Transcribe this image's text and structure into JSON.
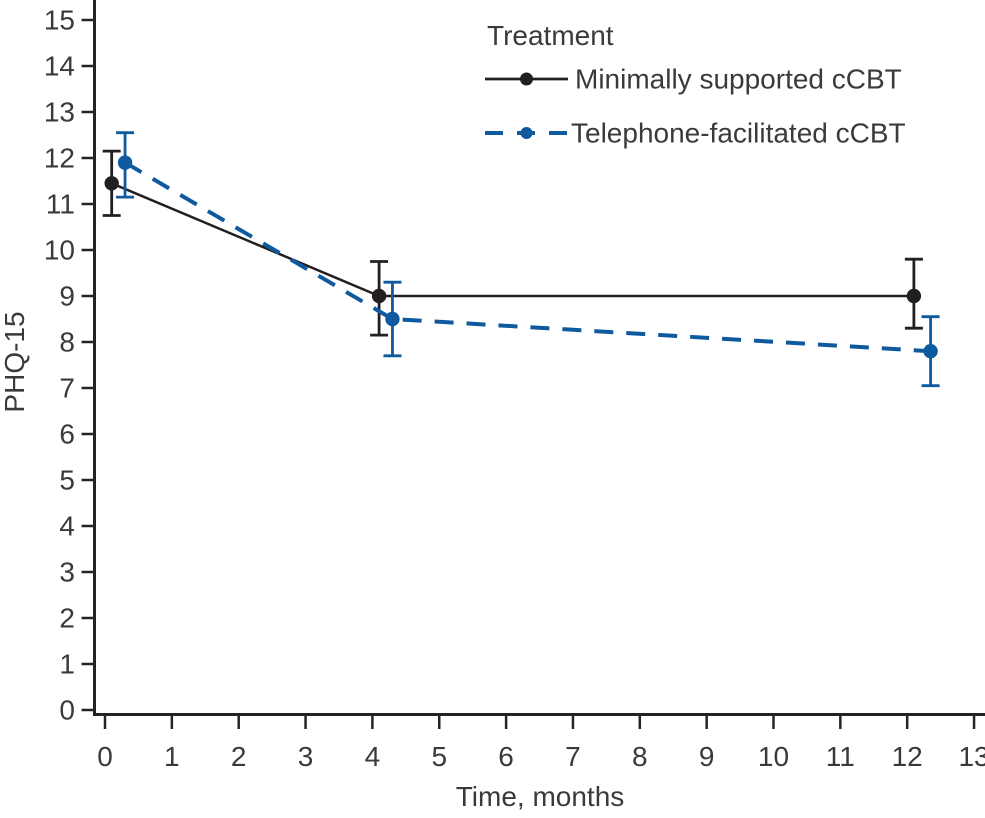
{
  "figure": {
    "background_color": "#ffffff",
    "axis_line_color": "#262323",
    "text_color": "#3a3a3a"
  },
  "chart_data": {
    "type": "line",
    "title": "",
    "xlabel": "Time, months",
    "ylabel": "PHQ-15",
    "xlim": [
      0,
      13
    ],
    "ylim": [
      0,
      15
    ],
    "x_ticks": [
      0,
      1,
      2,
      3,
      4,
      5,
      6,
      7,
      8,
      9,
      10,
      11,
      12,
      13
    ],
    "y_ticks": [
      0,
      1,
      2,
      3,
      4,
      5,
      6,
      7,
      8,
      9,
      10,
      11,
      12,
      13,
      14,
      15
    ],
    "grid": false,
    "error_bars": true,
    "legend": {
      "title": "Treatment",
      "position": "top-right"
    },
    "series": [
      {
        "name": "Minimally supported cCBT",
        "color": "#231f20",
        "line_style": "solid",
        "marker": "circle",
        "points": [
          {
            "x": 0.1,
            "y": 11.45,
            "ci_low": 10.75,
            "ci_high": 12.15
          },
          {
            "x": 4.1,
            "y": 9.0,
            "ci_low": 8.15,
            "ci_high": 9.75
          },
          {
            "x": 12.1,
            "y": 9.0,
            "ci_low": 8.3,
            "ci_high": 9.8
          }
        ]
      },
      {
        "name": "Telephone-facilitated cCBT",
        "color": "#0f5a9e",
        "line_style": "dashed",
        "marker": "circle",
        "points": [
          {
            "x": 0.3,
            "y": 11.9,
            "ci_low": 11.15,
            "ci_high": 12.55
          },
          {
            "x": 4.3,
            "y": 8.5,
            "ci_low": 7.7,
            "ci_high": 9.3
          },
          {
            "x": 12.35,
            "y": 7.8,
            "ci_low": 7.05,
            "ci_high": 8.55
          }
        ]
      }
    ]
  }
}
